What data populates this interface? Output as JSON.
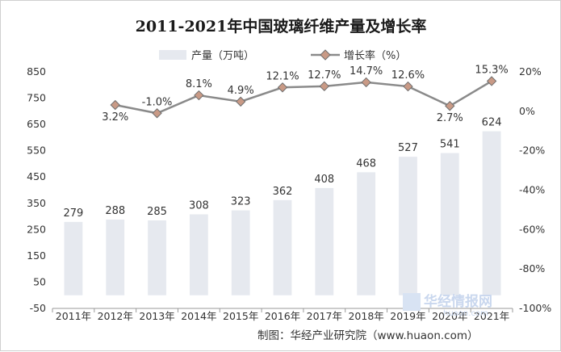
{
  "chart_data": {
    "type": "bar",
    "title": "2011-2021年中国玻璃纤维产量及增长率",
    "categories": [
      "2011年",
      "2012年",
      "2013年",
      "2014年",
      "2015年",
      "2016年",
      "2017年",
      "2018年",
      "2019年",
      "2020年",
      "2021年"
    ],
    "series": [
      {
        "name": "产量（万吨）",
        "type": "bar",
        "axis": "left",
        "values": [
          279,
          288,
          285,
          308,
          323,
          362,
          408,
          468,
          527,
          541,
          624
        ],
        "labels": [
          "279",
          "288",
          "285",
          "308",
          "323",
          "362",
          "408",
          "468",
          "527",
          "541",
          "624"
        ],
        "color": "#e6e9ef"
      },
      {
        "name": "增长率（%）",
        "type": "line",
        "axis": "right",
        "values": [
          null,
          3.2,
          -1.0,
          8.1,
          4.9,
          12.1,
          12.7,
          14.7,
          12.6,
          2.7,
          15.3
        ],
        "labels": [
          "",
          "3.2%",
          "-1.0%",
          "8.1%",
          "4.9%",
          "12.1%",
          "12.7%",
          "14.7%",
          "12.6%",
          "2.7%",
          "15.3%"
        ],
        "color": "#8a8a8a",
        "marker_color": "#c99a86"
      }
    ],
    "y_left": {
      "ylim": [
        -50,
        850
      ],
      "ticks": [
        "-50",
        "50",
        "150",
        "250",
        "350",
        "450",
        "550",
        "650",
        "750",
        "850"
      ]
    },
    "y_right": {
      "ylim": [
        -100,
        20
      ],
      "ticks": [
        "-100%",
        "-80%",
        "-60%",
        "-40%",
        "-20%",
        "0%",
        "20%"
      ]
    },
    "legend_position": "top",
    "grid": false
  },
  "source": "制图：华经产业研究院（www.huaon.com）",
  "watermark": {
    "main": "华经情报网",
    "sub": "huaon.com"
  }
}
